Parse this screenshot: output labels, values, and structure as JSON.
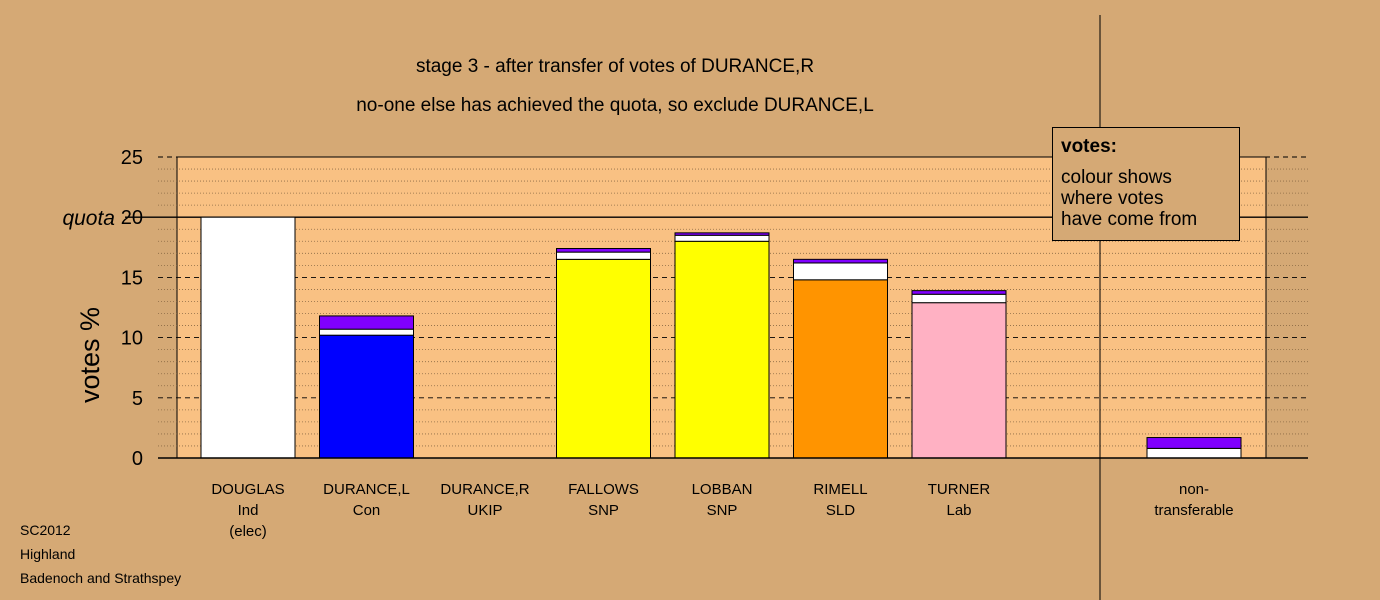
{
  "titles": {
    "line1": "stage 3 - after transfer of votes of DURANCE,R",
    "line2": "no-one else has achieved the quota, so exclude DURANCE,L"
  },
  "footer": {
    "line1": "SC2012",
    "line2": "Highland",
    "line3": "Badenoch and Strathspey"
  },
  "legend": {
    "heading": "votes:",
    "body": "colour shows\nwhere votes\nhave come from"
  },
  "colors": {
    "background": "#d5a975",
    "plot_area": "#f9c183",
    "Ind": "#ffffff",
    "Con": "#0000ff",
    "SNP": "#ffff00",
    "SLD": "#ff9400",
    "Lab": "#ffb1c3",
    "transfer_DOUGLAS": "#ffffff",
    "transfer_DURANCE_R": "#8000ff"
  },
  "chart_data": {
    "type": "bar",
    "stacked": true,
    "ylabel": "votes %",
    "ylim": [
      0,
      25
    ],
    "yticks": [
      0,
      5,
      10,
      15,
      20,
      25
    ],
    "quota": {
      "label": "quota",
      "value": 20
    },
    "candidates": [
      {
        "name": "DOUGLAS",
        "party": "Ind",
        "note": "(elec)",
        "color": "#ffffff",
        "segments": [
          {
            "source": "first preferences",
            "value": 20.0,
            "color": "#ffffff"
          }
        ]
      },
      {
        "name": "DURANCE,L",
        "party": "Con",
        "note": "",
        "color": "#0000ff",
        "segments": [
          {
            "source": "first preferences",
            "value": 10.2,
            "color": "#0000ff"
          },
          {
            "source": "from DOUGLAS",
            "value": 0.5,
            "color": "#ffffff"
          },
          {
            "source": "from DURANCE,R",
            "value": 1.1,
            "color": "#8000ff"
          }
        ]
      },
      {
        "name": "DURANCE,R",
        "party": "UKIP",
        "note": "",
        "color": "#8000ff",
        "segments": []
      },
      {
        "name": "FALLOWS",
        "party": "SNP",
        "note": "",
        "color": "#ffff00",
        "segments": [
          {
            "source": "first preferences",
            "value": 16.5,
            "color": "#ffff00"
          },
          {
            "source": "from DOUGLAS",
            "value": 0.6,
            "color": "#ffffff"
          },
          {
            "source": "from DURANCE,R",
            "value": 0.3,
            "color": "#8000ff"
          }
        ]
      },
      {
        "name": "LOBBAN",
        "party": "SNP",
        "note": "",
        "color": "#ffff00",
        "segments": [
          {
            "source": "first preferences",
            "value": 18.0,
            "color": "#ffff00"
          },
          {
            "source": "from DOUGLAS",
            "value": 0.5,
            "color": "#ffffff"
          },
          {
            "source": "from DURANCE,R",
            "value": 0.2,
            "color": "#8000ff"
          }
        ]
      },
      {
        "name": "RIMELL",
        "party": "SLD",
        "note": "",
        "color": "#ff9400",
        "segments": [
          {
            "source": "first preferences",
            "value": 14.8,
            "color": "#ff9400"
          },
          {
            "source": "from DOUGLAS",
            "value": 1.4,
            "color": "#ffffff"
          },
          {
            "source": "from DURANCE,R",
            "value": 0.3,
            "color": "#8000ff"
          }
        ]
      },
      {
        "name": "TURNER",
        "party": "Lab",
        "note": "",
        "color": "#ffb1c3",
        "segments": [
          {
            "source": "first preferences",
            "value": 12.9,
            "color": "#ffb1c3"
          },
          {
            "source": "from DOUGLAS",
            "value": 0.7,
            "color": "#ffffff"
          },
          {
            "source": "from DURANCE,R",
            "value": 0.3,
            "color": "#8000ff"
          }
        ]
      }
    ],
    "non_transferable": {
      "label_line1": "non-",
      "label_line2": "transferable",
      "segments": [
        {
          "source": "from DOUGLAS",
          "value": 0.8,
          "color": "#ffffff"
        },
        {
          "source": "from DURANCE,R",
          "value": 0.9,
          "color": "#8000ff"
        }
      ]
    }
  }
}
